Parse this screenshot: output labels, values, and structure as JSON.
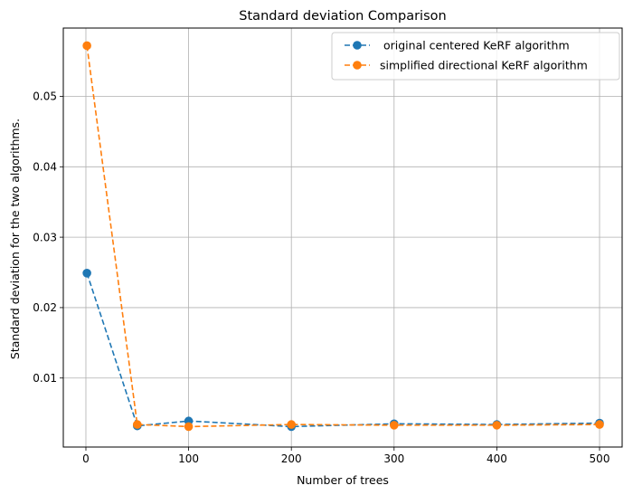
{
  "chart_data": {
    "type": "line",
    "title": "Standard deviation Comparison",
    "xlabel": "Number of trees",
    "ylabel": "Standard deviation for the two algorithms.",
    "xlim": [
      -22,
      522
    ],
    "ylim": [
      0.0002,
      0.0597
    ],
    "xticks": [
      0,
      100,
      200,
      300,
      400,
      500
    ],
    "xtick_labels": [
      "0",
      "100",
      "200",
      "300",
      "400",
      "500"
    ],
    "yticks": [
      0.01,
      0.02,
      0.03,
      0.04,
      0.05
    ],
    "ytick_labels": [
      "0.01",
      "0.02",
      "0.03",
      "0.04",
      "0.05"
    ],
    "grid": true,
    "legend_position": "top-right",
    "x": [
      1,
      50,
      100,
      200,
      300,
      400,
      500
    ],
    "series": [
      {
        "name": " original centered KeRF algorithm",
        "color": "#1f77b4",
        "line_style": "dashed",
        "marker": "circle",
        "values": [
          0.0249,
          0.0032,
          0.0039,
          0.0031,
          0.0035,
          0.0034,
          0.0036
        ]
      },
      {
        "name": "simplified directional KeRF algorithm",
        "color": "#ff7f0e",
        "line_style": "dashed",
        "marker": "circle",
        "values": [
          0.0572,
          0.0034,
          0.0031,
          0.0034,
          0.0033,
          0.0033,
          0.0034
        ]
      }
    ]
  }
}
